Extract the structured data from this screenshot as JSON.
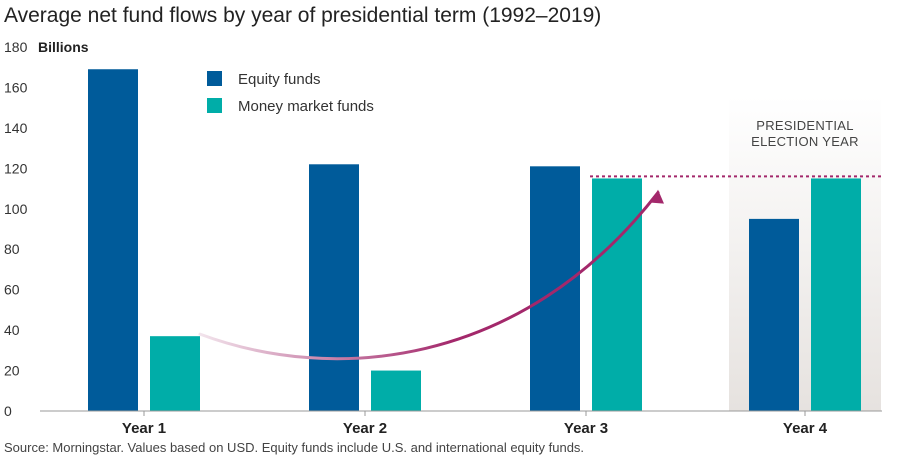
{
  "colors": {
    "equity": "#005B9A",
    "money_market": "#00ADA8",
    "arrow": "#A3286B",
    "highlight": "#E6E2DF"
  },
  "chart_data": {
    "type": "bar",
    "title": "Average net fund flows by year of presidential term (1992–2019)",
    "unit_label": "Billions",
    "categories": [
      "Year 1",
      "Year 2",
      "Year 3",
      "Year 4"
    ],
    "series": [
      {
        "name": "Equity funds",
        "values": [
          169,
          122,
          121,
          95
        ]
      },
      {
        "name": "Money market funds",
        "values": [
          37,
          20,
          115,
          115
        ]
      }
    ],
    "ylim": [
      0,
      180
    ],
    "yticks": [
      0,
      20,
      40,
      60,
      80,
      100,
      120,
      140,
      160,
      180
    ],
    "highlight_category": "Year 4",
    "annotation": "PRESIDENTIAL ELECTION YEAR",
    "reference_line_value": 116,
    "legend_position": "top-left",
    "grid": false
  },
  "source": "Source: Morningstar. Values based on USD. Equity funds include U.S. and international equity funds."
}
